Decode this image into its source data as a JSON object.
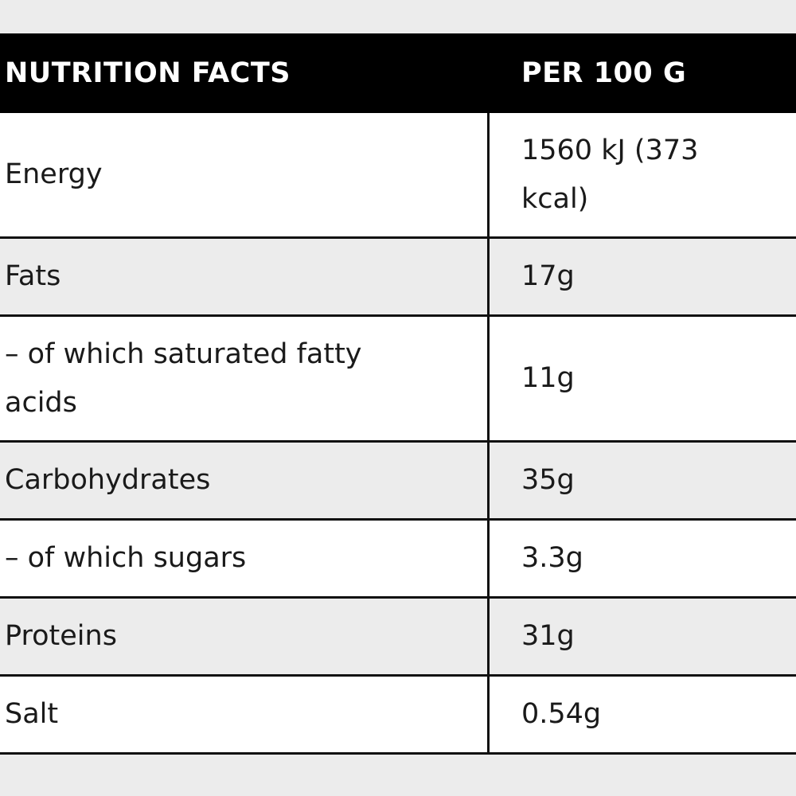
{
  "table": {
    "header": {
      "left": "NUTRITION FACTS",
      "right": "PER 100 G"
    },
    "rows": [
      {
        "label": "Energy",
        "value": "1560 kJ (373 kcal)"
      },
      {
        "label": "Fats",
        "value": "17g"
      },
      {
        "label": "– of which saturated fatty acids",
        "value": "11g"
      },
      {
        "label": "Carbohydrates",
        "value": "35g"
      },
      {
        "label": "– of which sugars",
        "value": "3.3g"
      },
      {
        "label": "Proteins",
        "value": "31g"
      },
      {
        "label": "Salt",
        "value": "0.54g"
      }
    ]
  },
  "colors": {
    "header_bg": "#000000",
    "header_text": "#ffffff",
    "row_white": "#ffffff",
    "row_grey": "#ececec",
    "border": "#111111"
  }
}
